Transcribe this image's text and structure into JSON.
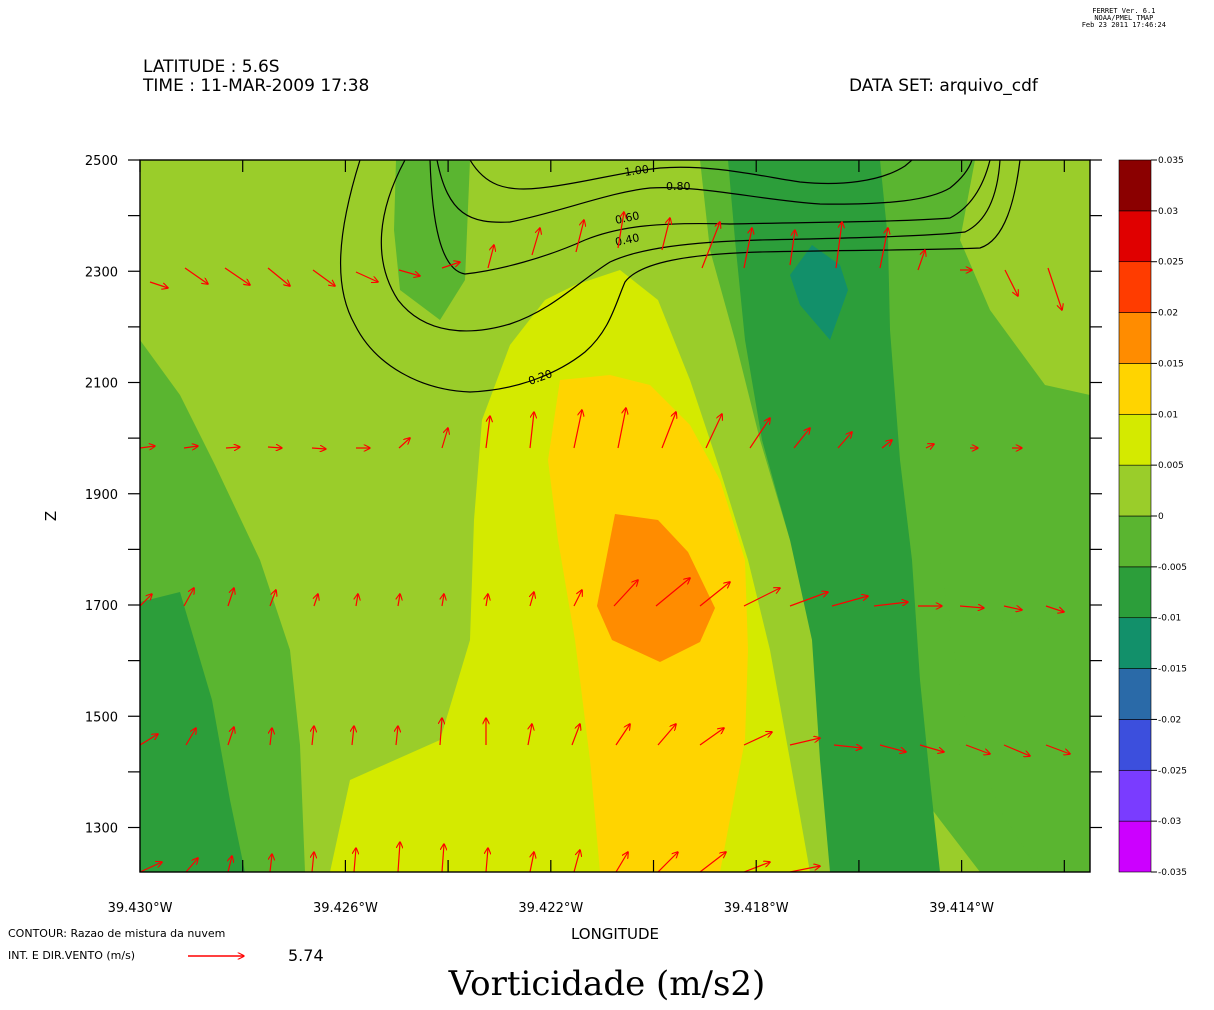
{
  "header": {
    "latitude": "LATITUDE : 5.6S",
    "time": "TIME : 11-MAR-2009 17:38",
    "dataset": "DATA SET: arquivo_cdf",
    "ferret": [
      "FERRET Ver. 6.1",
      "NOAA/PMEL TMAP",
      "Feb 23 2011 17:46:24"
    ]
  },
  "footer": {
    "contour_label": "CONTOUR: Razao de mistura da nuvem",
    "vector_label": "INT. E DIR.VENTO (m/s)",
    "vector_ref": "5.74",
    "title": "Vorticidade (m/s2)"
  },
  "chart_data": {
    "type": "heatmap",
    "xlabel": "LONGITUDE",
    "ylabel": "Z",
    "xlim": [
      -39.43,
      -39.4115
    ],
    "ylim": [
      1220,
      2500
    ],
    "x_ticks": [
      -39.43,
      -39.428,
      -39.426,
      -39.424,
      -39.422,
      -39.42,
      -39.418,
      -39.416,
      -39.414,
      -39.412
    ],
    "x_tick_labels": [
      "39.430°W",
      "",
      "39.426°W",
      "",
      "39.422°W",
      "",
      "39.418°W",
      "",
      "39.414°W",
      ""
    ],
    "y_ticks": [
      1300,
      1400,
      1500,
      1600,
      1700,
      1800,
      1900,
      2000,
      2100,
      2200,
      2300,
      2400,
      2500
    ],
    "y_tick_labels": [
      "1300",
      "",
      "1500",
      "",
      "1700",
      "",
      "1900",
      "",
      "2100",
      "",
      "2300",
      "",
      "2500"
    ],
    "colorbar": {
      "levels": [
        -0.035,
        -0.03,
        -0.025,
        -0.02,
        -0.015,
        -0.01,
        -0.005,
        0,
        0.005,
        0.01,
        0.015,
        0.02,
        0.025,
        0.03,
        0.035
      ],
      "labels": [
        "-0.035",
        "-0.03",
        "-0.025",
        "-0.02",
        "-0.015",
        "-0.01",
        "-0.005",
        "0",
        "0.005",
        "0.01",
        "0.015",
        "0.02",
        "0.025",
        "0.03",
        "0.035"
      ],
      "colors": [
        "#cc00ff",
        "#7a3cff",
        "#3c4fdd",
        "#2a6aa8",
        "#12906a",
        "#2c9e3a",
        "#5ab530",
        "#9acd2a",
        "#d4ea00",
        "#ffd400",
        "#ff8c00",
        "#ff3c00",
        "#e00000",
        "#8b0000"
      ]
    },
    "contour_labels": [
      "1.00",
      "0.80",
      "0.60",
      "0.40",
      "0.20"
    ],
    "vector_reference_speed": 5.74
  }
}
